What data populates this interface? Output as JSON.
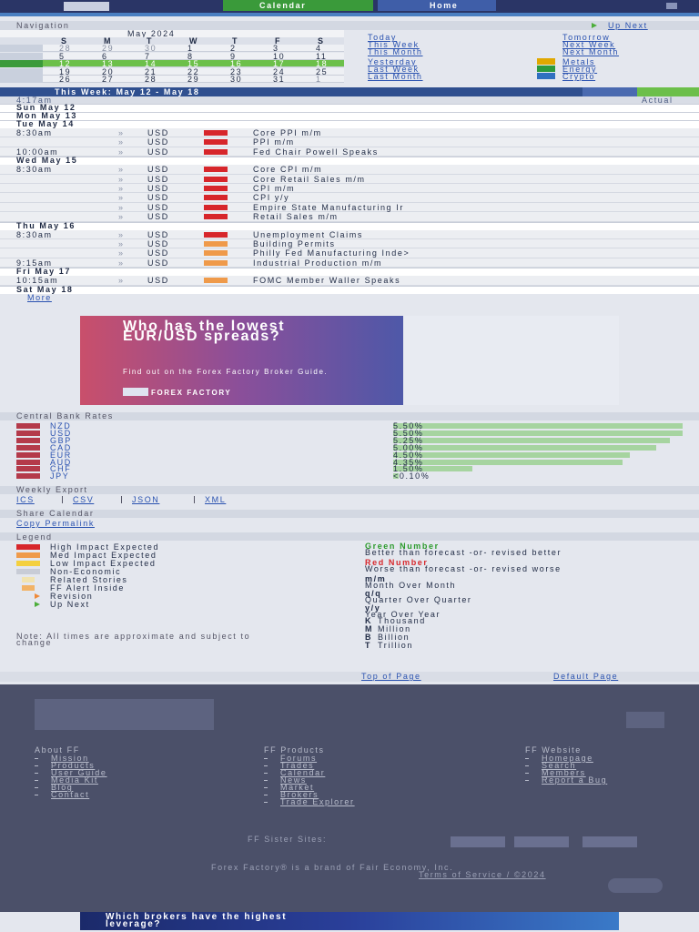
{
  "header": {
    "tabs": [
      "Calendar",
      "Home"
    ]
  },
  "navigation": {
    "title": "Navigation",
    "up_next": "Up Next",
    "month": "May 2024",
    "weekdays": [
      "S",
      "M",
      "T",
      "W",
      "T",
      "F",
      "S"
    ],
    "weeks": [
      [
        28,
        29,
        30,
        1,
        2,
        3,
        4
      ],
      [
        5,
        6,
        7,
        8,
        9,
        10,
        11
      ],
      [
        12,
        13,
        14,
        15,
        16,
        17,
        18
      ],
      [
        19,
        20,
        21,
        22,
        23,
        24,
        25
      ],
      [
        26,
        27,
        28,
        29,
        30,
        31,
        1
      ]
    ],
    "selected_week": 2,
    "links_left": [
      "Today",
      "This Week",
      "This Month",
      "Yesterday",
      "Last Week",
      "Last Month"
    ],
    "links_right": [
      "Tomorrow",
      "Next Week",
      "Next Month",
      "Metals",
      "Energy",
      "Crypto"
    ]
  },
  "impact_colors": {
    "high": "#d7262b",
    "med": "#ef9a4a"
  },
  "week": {
    "title": "This Week: May 12 - May 18",
    "current_time": "4:17am",
    "actual": "Actual",
    "more": "More",
    "days": [
      {
        "label": "Sun May 12",
        "events": []
      },
      {
        "label": "Mon May 13",
        "events": []
      },
      {
        "label": "Tue May 14",
        "events": [
          {
            "time": "8:30am",
            "currency": "USD",
            "impact": "high",
            "name": "Core PPI m/m"
          },
          {
            "currency": "USD",
            "impact": "high",
            "name": "PPI m/m"
          },
          {
            "time": "10:00am",
            "currency": "USD",
            "impact": "high",
            "name": "Fed Chair Powell Speaks"
          }
        ]
      },
      {
        "label": "Wed May 15",
        "events": [
          {
            "time": "8:30am",
            "currency": "USD",
            "impact": "high",
            "name": "Core CPI m/m"
          },
          {
            "currency": "USD",
            "impact": "high",
            "name": "Core Retail Sales m/m"
          },
          {
            "currency": "USD",
            "impact": "high",
            "name": "CPI m/m"
          },
          {
            "currency": "USD",
            "impact": "high",
            "name": "CPI y/y"
          },
          {
            "currency": "USD",
            "impact": "high",
            "name": "Empire State Manufacturing Ir"
          },
          {
            "currency": "USD",
            "impact": "high",
            "name": "Retail Sales m/m"
          }
        ]
      },
      {
        "label": "Thu May 16",
        "events": [
          {
            "time": "8:30am",
            "currency": "USD",
            "impact": "high",
            "name": "Unemployment Claims"
          },
          {
            "currency": "USD",
            "impact": "med",
            "name": "Building Permits"
          },
          {
            "currency": "USD",
            "impact": "med",
            "name": "Philly Fed Manufacturing Inde>"
          },
          {
            "time": "9:15am",
            "currency": "USD",
            "impact": "med",
            "name": "Industrial Production m/m"
          }
        ]
      },
      {
        "label": "Fri May 17",
        "events": [
          {
            "time": "10:15am",
            "currency": "USD",
            "impact": "med",
            "name": "FOMC Member Waller Speaks"
          }
        ]
      },
      {
        "label": "Sat May 18",
        "events": []
      }
    ]
  },
  "ad": {
    "headline": "Who has the lowest EUR/USD spreads?",
    "sub": "Find out on the Forex Factory Broker Guide.",
    "brand": "FOREX FACTORY"
  },
  "rates": {
    "title": "Central Bank Rates",
    "currencies": [
      "NZD",
      "USD",
      "GBP",
      "CAD",
      "EUR",
      "AUD",
      "CHF",
      "JPY"
    ],
    "values": [
      5.5,
      5.5,
      5.25,
      5.0,
      4.5,
      4.35,
      1.5,
      0.1
    ],
    "value_labels": [
      "5.50%",
      "5.50%",
      "5.25%",
      "5.00%",
      "4.50%",
      "4.35%",
      "1.50%",
      "<0.10%"
    ],
    "color": "#a6d4a0"
  },
  "export": {
    "title": "Weekly Export",
    "formats": [
      "ICS",
      "CSV",
      "JSON",
      "XML"
    ]
  },
  "share": {
    "title": "Share Calendar",
    "link": "Copy Permalink"
  },
  "legend": {
    "title": "Legend",
    "items": [
      "High Impact Expected",
      "Med Impact Expected",
      "Low Impact Expected",
      "Non-Economic",
      "Related Stories",
      "FF Alert Inside",
      "Revision",
      "Up Next"
    ],
    "terms": [
      {
        "term": "Green Number",
        "meaning": "Better than forecast -or- revised better"
      },
      {
        "term": "Red Number",
        "meaning": "Worse than forecast -or- revised worse"
      },
      {
        "term": "m/m",
        "meaning": "Month Over Month"
      },
      {
        "term": "q/q",
        "meaning": "Quarter Over Quarter"
      },
      {
        "term": "y/y",
        "meaning": "Year Over Year"
      },
      {
        "term": "K",
        "meaning": "Thousand"
      },
      {
        "term": "M",
        "meaning": "Million"
      },
      {
        "term": "B",
        "meaning": "Billion"
      },
      {
        "term": "T",
        "meaning": "Trillion"
      }
    ],
    "note": "Note: All times are approximate and subject to change"
  },
  "page_links": [
    "Top of Page",
    "Default Page"
  ],
  "footer": {
    "columns": [
      {
        "title": "About FF",
        "links": [
          "Mission",
          "Products",
          "User Guide",
          "Media Kit",
          "Blog",
          "Contact"
        ]
      },
      {
        "title": "FF Products",
        "links": [
          "Forums",
          "Trades",
          "Calendar",
          "News",
          "Market",
          "Brokers",
          "Trade Explorer"
        ]
      },
      {
        "title": "FF Website",
        "links": [
          "Homepage",
          "Search",
          "Members",
          "Report a Bug"
        ]
      }
    ],
    "sister_sites": "FF Sister Sites:",
    "brand": "Forex Factory® is a brand of Fair Economy, Inc.",
    "terms": "Terms of Service / ©2024"
  },
  "bottom_ad": "Which brokers have the highest leverage?"
}
